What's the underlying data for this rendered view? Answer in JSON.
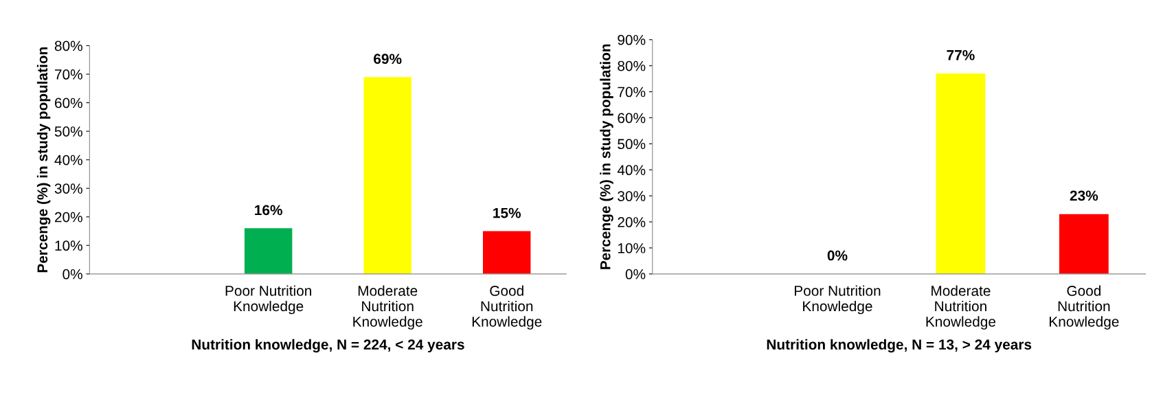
{
  "chart_data": [
    {
      "type": "bar",
      "xlabel": "Nutrition knowledge, N = 224, < 24 years",
      "ylabel": "Percenge (%) in study population",
      "categories": [
        null,
        "Poor Nutrition\nKnowledge",
        "Moderate\nNutrition\nKnowledge",
        "Good\nNutrition\nKnowledge"
      ],
      "values": [
        null,
        16,
        69,
        15
      ],
      "colors": [
        "#00b050",
        "#00b050",
        "#ffff00",
        "#ff0000"
      ],
      "value_labels": [
        null,
        "16%",
        "69%",
        "15%"
      ],
      "ylim": [
        0,
        80
      ],
      "yticks": [
        {
          "value": 0,
          "label": "0%"
        },
        {
          "value": 10,
          "label": "10%"
        },
        {
          "value": 20,
          "label": "20%"
        },
        {
          "value": 30,
          "label": "30%"
        },
        {
          "value": 40,
          "label": "40%"
        },
        {
          "value": 50,
          "label": "50%"
        },
        {
          "value": 60,
          "label": "60%"
        },
        {
          "value": 70,
          "label": "70%"
        },
        {
          "value": 80,
          "label": "80%"
        }
      ],
      "grid": false,
      "legend": false
    },
    {
      "type": "bar",
      "xlabel": "Nutrition knowledge, N = 13, > 24 years",
      "ylabel": "Percenge (%) in study population",
      "categories": [
        null,
        "Poor Nutrition\nKnowledge",
        "Moderate\nNutrition\nKnowledge",
        "Good\nNutrition\nKnowledge"
      ],
      "values": [
        null,
        0,
        77,
        23
      ],
      "colors": [
        "#00b050",
        "#00b050",
        "#ffff00",
        "#ff0000"
      ],
      "value_labels": [
        null,
        "0%",
        "77%",
        "23%"
      ],
      "ylim": [
        0,
        90
      ],
      "yticks": [
        {
          "value": 0,
          "label": "0%"
        },
        {
          "value": 10,
          "label": "10%"
        },
        {
          "value": 20,
          "label": "20%"
        },
        {
          "value": 30,
          "label": "30%"
        },
        {
          "value": 40,
          "label": "40%"
        },
        {
          "value": 50,
          "label": "50%"
        },
        {
          "value": 60,
          "label": "60%"
        },
        {
          "value": 70,
          "label": "70%"
        },
        {
          "value": 80,
          "label": "80%"
        },
        {
          "value": 90,
          "label": "90%"
        }
      ],
      "grid": false,
      "legend": false
    }
  ]
}
